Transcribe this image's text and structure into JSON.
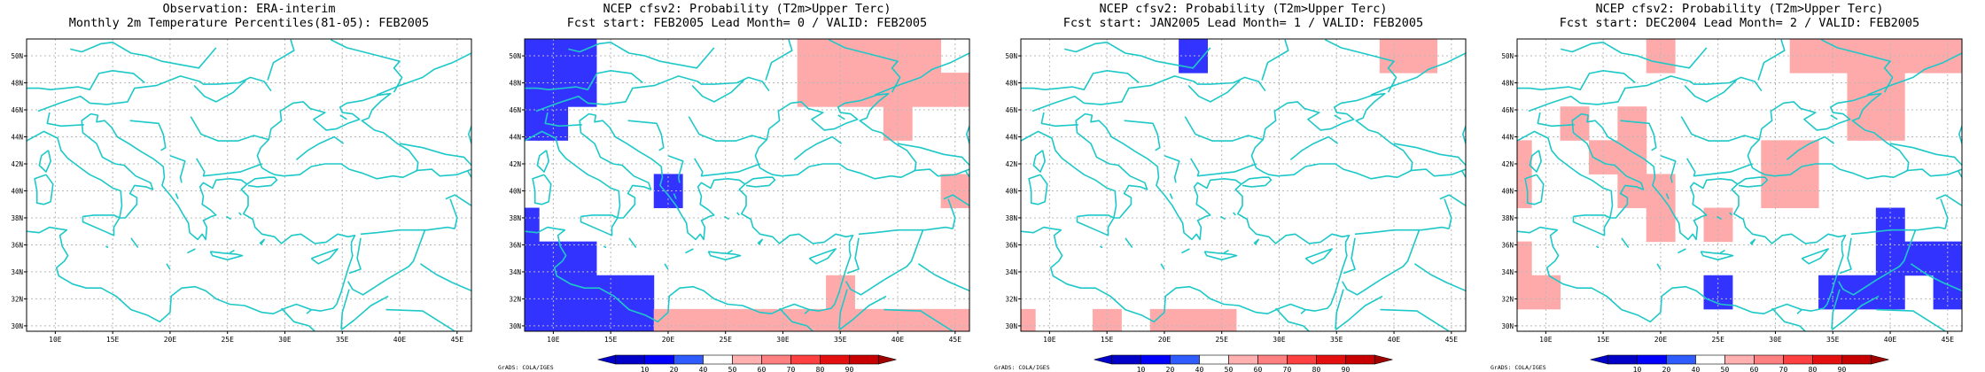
{
  "panels": [
    {
      "title1": "Observation: ERA-interim",
      "title2": "Monthly 2m Temperature Percentiles(81-05): FEB2005",
      "colorbar": false,
      "credit": "",
      "cells": []
    },
    {
      "title1": "NCEP cfsv2: Probability (T2m>Upper Terc)",
      "title2": "Fcst start: FEB2005  Lead Month= 0 / VALID: FEB2005",
      "colorbar": true,
      "credit": "GrADS: COLA/IGES",
      "cells": [
        {
          "lon": 7.5,
          "lat": 50,
          "v": 15
        },
        {
          "lon": 10,
          "lat": 50,
          "v": 15
        },
        {
          "lon": 12.5,
          "lat": 50,
          "v": 15
        },
        {
          "lon": 7.5,
          "lat": 47.5,
          "v": 15
        },
        {
          "lon": 10,
          "lat": 47.5,
          "v": 15
        },
        {
          "lon": 12.5,
          "lat": 47.5,
          "v": 15
        },
        {
          "lon": 7.5,
          "lat": 45,
          "v": 15
        },
        {
          "lon": 10,
          "lat": 45,
          "v": 15
        },
        {
          "lon": 20,
          "lat": 40,
          "v": 15
        },
        {
          "lon": 7.5,
          "lat": 37.5,
          "v": 15
        },
        {
          "lon": 7.5,
          "lat": 35,
          "v": 15
        },
        {
          "lon": 10,
          "lat": 35,
          "v": 15
        },
        {
          "lon": 12.5,
          "lat": 35,
          "v": 15
        },
        {
          "lon": 7.5,
          "lat": 32.5,
          "v": 15
        },
        {
          "lon": 10,
          "lat": 32.5,
          "v": 15
        },
        {
          "lon": 12.5,
          "lat": 32.5,
          "v": 15
        },
        {
          "lon": 15,
          "lat": 32.5,
          "v": 15
        },
        {
          "lon": 17.5,
          "lat": 32.5,
          "v": 15
        },
        {
          "lon": 7.5,
          "lat": 30,
          "v": 15
        },
        {
          "lon": 10,
          "lat": 30,
          "v": 15
        },
        {
          "lon": 12.5,
          "lat": 30,
          "v": 15
        },
        {
          "lon": 15,
          "lat": 30,
          "v": 15
        },
        {
          "lon": 17.5,
          "lat": 30,
          "v": 15
        },
        {
          "lon": 32.5,
          "lat": 50,
          "v": 45
        },
        {
          "lon": 35,
          "lat": 50,
          "v": 45
        },
        {
          "lon": 37.5,
          "lat": 50,
          "v": 45
        },
        {
          "lon": 40,
          "lat": 50,
          "v": 45
        },
        {
          "lon": 42.5,
          "lat": 50,
          "v": 45
        },
        {
          "lon": 32.5,
          "lat": 47.5,
          "v": 45
        },
        {
          "lon": 35,
          "lat": 47.5,
          "v": 45
        },
        {
          "lon": 37.5,
          "lat": 47.5,
          "v": 45
        },
        {
          "lon": 40,
          "lat": 47.5,
          "v": 45
        },
        {
          "lon": 42.5,
          "lat": 47.5,
          "v": 45
        },
        {
          "lon": 45,
          "lat": 47.5,
          "v": 45
        },
        {
          "lon": 40,
          "lat": 45,
          "v": 45
        },
        {
          "lon": 45,
          "lat": 40,
          "v": 45
        },
        {
          "lon": 35,
          "lat": 32.5,
          "v": 45
        },
        {
          "lon": 20,
          "lat": 30,
          "v": 45
        },
        {
          "lon": 22.5,
          "lat": 30,
          "v": 45
        },
        {
          "lon": 25,
          "lat": 30,
          "v": 45
        },
        {
          "lon": 27.5,
          "lat": 30,
          "v": 45
        },
        {
          "lon": 30,
          "lat": 30,
          "v": 45
        },
        {
          "lon": 32.5,
          "lat": 30,
          "v": 45
        },
        {
          "lon": 35,
          "lat": 30,
          "v": 45
        },
        {
          "lon": 37.5,
          "lat": 30,
          "v": 45
        },
        {
          "lon": 40,
          "lat": 30,
          "v": 45
        },
        {
          "lon": 42.5,
          "lat": 30,
          "v": 45
        },
        {
          "lon": 45,
          "lat": 30,
          "v": 45
        }
      ]
    },
    {
      "title1": "NCEP cfsv2: Probability (T2m>Upper Terc)",
      "title2": "Fcst start: JAN2005  Lead Month= 1 / VALID: FEB2005",
      "colorbar": true,
      "credit": "GrADS: COLA/IGES",
      "cells": [
        {
          "lon": 22.5,
          "lat": 50,
          "v": 15
        },
        {
          "lon": 40,
          "lat": 50,
          "v": 45
        },
        {
          "lon": 42.5,
          "lat": 50,
          "v": 45
        },
        {
          "lon": 7.5,
          "lat": 30,
          "v": 45
        },
        {
          "lon": 15,
          "lat": 30,
          "v": 45
        },
        {
          "lon": 20,
          "lat": 30,
          "v": 45
        },
        {
          "lon": 22.5,
          "lat": 30,
          "v": 45
        },
        {
          "lon": 25,
          "lat": 30,
          "v": 45
        }
      ]
    },
    {
      "title1": "NCEP cfsv2: Probability (T2m>Upper Terc)",
      "title2": "Fcst start: DEC2004  Lead Month= 2 / VALID: FEB2005",
      "colorbar": true,
      "credit": "GrADS: COLA/IGES",
      "cells": [
        {
          "lon": 20,
          "lat": 50,
          "v": 45
        },
        {
          "lon": 32.5,
          "lat": 50,
          "v": 45
        },
        {
          "lon": 35,
          "lat": 50,
          "v": 45
        },
        {
          "lon": 37.5,
          "lat": 50,
          "v": 45
        },
        {
          "lon": 40,
          "lat": 50,
          "v": 45
        },
        {
          "lon": 42.5,
          "lat": 50,
          "v": 45
        },
        {
          "lon": 45,
          "lat": 50,
          "v": 45
        },
        {
          "lon": 37.5,
          "lat": 47.5,
          "v": 45
        },
        {
          "lon": 40,
          "lat": 47.5,
          "v": 45
        },
        {
          "lon": 12.5,
          "lat": 45,
          "v": 45
        },
        {
          "lon": 17.5,
          "lat": 45,
          "v": 45
        },
        {
          "lon": 37.5,
          "lat": 45,
          "v": 45
        },
        {
          "lon": 40,
          "lat": 45,
          "v": 45
        },
        {
          "lon": 7.5,
          "lat": 42.5,
          "v": 45
        },
        {
          "lon": 15,
          "lat": 42.5,
          "v": 45
        },
        {
          "lon": 17.5,
          "lat": 42.5,
          "v": 45
        },
        {
          "lon": 30,
          "lat": 42.5,
          "v": 45
        },
        {
          "lon": 32.5,
          "lat": 42.5,
          "v": 45
        },
        {
          "lon": 7.5,
          "lat": 40,
          "v": 45
        },
        {
          "lon": 17.5,
          "lat": 40,
          "v": 45
        },
        {
          "lon": 20,
          "lat": 40,
          "v": 45
        },
        {
          "lon": 30,
          "lat": 40,
          "v": 45
        },
        {
          "lon": 32.5,
          "lat": 40,
          "v": 45
        },
        {
          "lon": 20,
          "lat": 37.5,
          "v": 45
        },
        {
          "lon": 25,
          "lat": 37.5,
          "v": 45
        },
        {
          "lon": 7.5,
          "lat": 35,
          "v": 45
        },
        {
          "lon": 7.5,
          "lat": 32.5,
          "v": 45
        },
        {
          "lon": 10,
          "lat": 32.5,
          "v": 45
        },
        {
          "lon": 40,
          "lat": 37.5,
          "v": 15
        },
        {
          "lon": 40,
          "lat": 35,
          "v": 15
        },
        {
          "lon": 42.5,
          "lat": 35,
          "v": 15
        },
        {
          "lon": 45,
          "lat": 35,
          "v": 15
        },
        {
          "lon": 25,
          "lat": 32.5,
          "v": 15
        },
        {
          "lon": 35,
          "lat": 32.5,
          "v": 15
        },
        {
          "lon": 37.5,
          "lat": 32.5,
          "v": 15
        },
        {
          "lon": 40,
          "lat": 32.5,
          "v": 15
        },
        {
          "lon": 45,
          "lat": 32.5,
          "v": 15
        }
      ]
    }
  ],
  "map": {
    "lon_range": [
      7.5,
      46.25
    ],
    "lat_range": [
      29.6,
      51.25
    ],
    "lon_ticks": [
      "10E",
      "15E",
      "20E",
      "25E",
      "30E",
      "35E",
      "40E",
      "45E"
    ],
    "lat_ticks": [
      "30N",
      "32N",
      "34N",
      "36N",
      "38N",
      "40N",
      "42N",
      "44N",
      "46N",
      "48N",
      "50N"
    ],
    "grid_step_deg": 2.5,
    "coast_color": "#1ec8c8",
    "grid_color": "#b8b8b8"
  },
  "colorbar": {
    "labels": [
      "10",
      "20",
      "40",
      "50",
      "60",
      "70",
      "80",
      "90"
    ],
    "colors": [
      "#0000ff",
      "#2f5cff",
      "#ffffff",
      "#ffb0b0",
      "#ff8080",
      "#ff4040",
      "#e41010",
      "#c80000"
    ],
    "end_colors": [
      "#0000c8",
      "#a00000"
    ]
  },
  "legend_colors": {
    "blue": "#3333ff",
    "pink": "#ffaaaa"
  }
}
